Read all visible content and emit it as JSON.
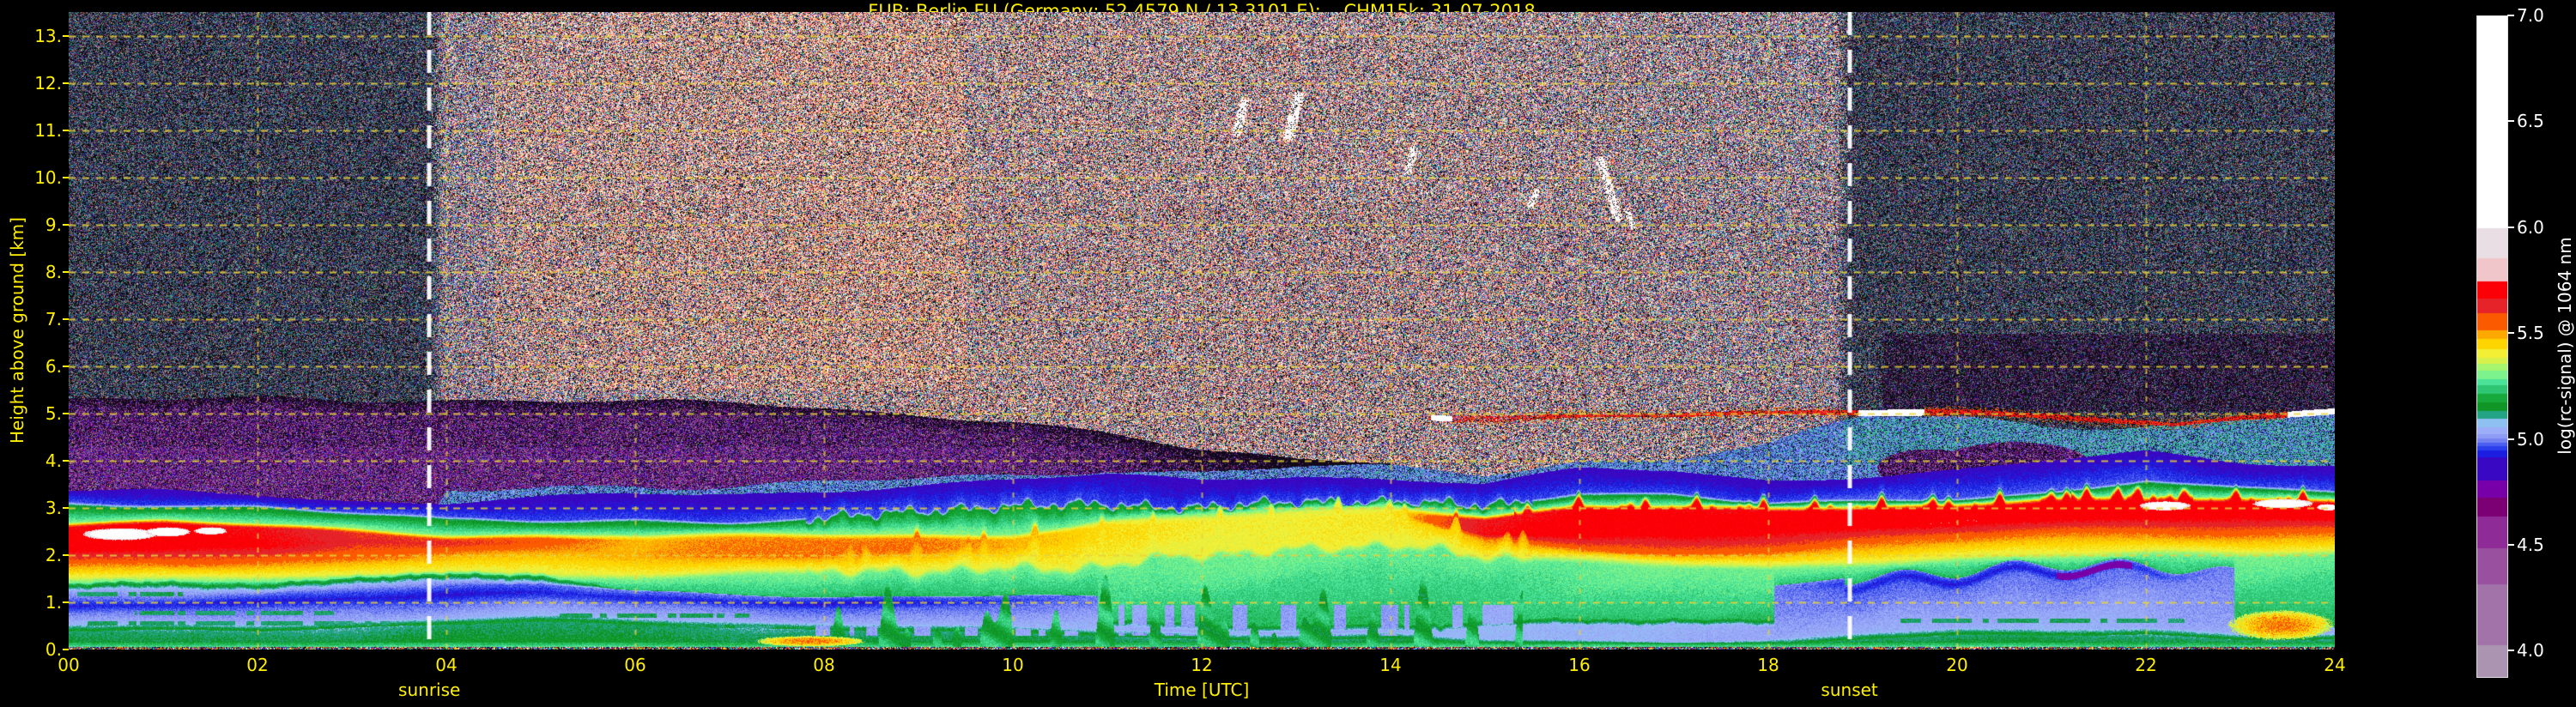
{
  "title": "FUB: Berlin FU (Germany; 52.4579 N / 13.3101 E):    CHM15k: 31-07-2018",
  "colors": {
    "background": "#000000",
    "axis_text": "#ffef00",
    "colorbar_text": "#ffffff",
    "gridline": "#e8d23c",
    "sun_line": "#ffffff"
  },
  "axes": {
    "xlabel": "Time [UTC]",
    "ylabel": "Height above ground [km]",
    "sunrise_label": "sunrise",
    "sunset_label": "sunset",
    "x_tick_labels": [
      "00",
      "02",
      "04",
      "06",
      "08",
      "10",
      "12",
      "14",
      "16",
      "18",
      "20",
      "22",
      "24"
    ],
    "y_tick_labels": [
      "0.",
      "1.",
      "2.",
      "3.",
      "4.",
      "5.",
      "6.",
      "7.",
      "8.",
      "9.",
      "10.",
      "11.",
      "12.",
      "13."
    ]
  },
  "colorbar": {
    "label": "log(rc-signal) @ 1064 nm",
    "tick_labels": [
      "7.0",
      "6.5",
      "6.0",
      "5.5",
      "5.0",
      "4.5",
      "4.0"
    ],
    "tick_values": [
      7.0,
      6.5,
      6.0,
      5.5,
      5.0,
      4.5,
      4.0
    ]
  },
  "chart_data": {
    "type": "heatmap",
    "title": "FUB: Berlin FU (Germany; 52.4579 N / 13.3101 E):    CHM15k: 31-07-2018",
    "x_range_utc_hours": [
      0,
      24
    ],
    "y_range_km": [
      0,
      13.5
    ],
    "value_label": "log(rc-signal) @ 1064 nm",
    "value_range": [
      4.0,
      7.0
    ],
    "bar_value_range": [
      3.88,
      7.0
    ],
    "sunrise_utc": 3.82,
    "sunset_utc": 18.86,
    "colormap_floor": 3.85,
    "colormap": [
      [
        4.03,
        "#ab93b2"
      ],
      [
        4.32,
        "#a273a8"
      ],
      [
        4.49,
        "#99519f"
      ],
      [
        4.64,
        "#8e2b96"
      ],
      [
        4.73,
        "#7c0074"
      ],
      [
        4.81,
        "#7800a8"
      ],
      [
        4.92,
        "#3908c2"
      ],
      [
        4.95,
        "#1b1ee0"
      ],
      [
        4.97,
        "#2b3eec"
      ],
      [
        4.99,
        "#4b5ef0"
      ],
      [
        5.01,
        "#7583f2"
      ],
      [
        5.03,
        "#8f9cf5"
      ],
      [
        5.06,
        "#9caef8"
      ],
      [
        5.1,
        "#8fc0f2"
      ],
      [
        5.14,
        "#23a484"
      ],
      [
        5.18,
        "#0f9627"
      ],
      [
        5.22,
        "#17a93b"
      ],
      [
        5.26,
        "#2ec573"
      ],
      [
        5.29,
        "#4ae397"
      ],
      [
        5.33,
        "#7bf28b"
      ],
      [
        5.36,
        "#a5f56e"
      ],
      [
        5.39,
        "#d8f04a"
      ],
      [
        5.43,
        "#f2ef35"
      ],
      [
        5.48,
        "#fed500"
      ],
      [
        5.52,
        "#fda900"
      ],
      [
        5.6,
        "#fb5a00"
      ],
      [
        5.67,
        "#e62328"
      ],
      [
        5.75,
        "#fb0007"
      ],
      [
        5.86,
        "#f0c6ca"
      ],
      [
        6.0,
        "#e8dee4"
      ],
      [
        7.01,
        "#ffffff"
      ]
    ],
    "layers": {
      "hours_step": 1,
      "lavender_top": [
        1.25,
        1.3,
        1.3,
        1.35,
        1.45,
        1.35,
        1.1,
        1.0,
        0.95,
        0.8,
        0.6,
        0.5,
        0.45,
        0.4,
        0.35,
        0.45,
        0.5,
        0.55,
        0.5,
        0.9,
        1.15,
        1.25,
        1.3,
        0.5,
        0.4
      ],
      "green_low_top": [
        0.45,
        0.5,
        0.5,
        0.55,
        0.6,
        0.65,
        0.6,
        0.55,
        0.5,
        0.45,
        0.4,
        0.35,
        0.3,
        0.3,
        0.3,
        0.15,
        0.12,
        0.12,
        0.15,
        0.3,
        0.35,
        0.35,
        0.4,
        0.3,
        0.3
      ],
      "blue_band_bottom": [
        0.75,
        0.8,
        0.85,
        0.95,
        1.0,
        1.05,
        0.9,
        0.85,
        0.85,
        0.9,
        0.95,
        1.0,
        1.0,
        1.0,
        1.0,
        1.1,
        1.2,
        1.2,
        1.25,
        1.3,
        1.4,
        1.5,
        1.55,
        1.5,
        1.5
      ],
      "blue_band_top": [
        1.05,
        1.1,
        1.15,
        1.3,
        1.35,
        1.4,
        1.2,
        1.15,
        1.1,
        1.15,
        1.15,
        1.1,
        1.1,
        1.1,
        1.1,
        1.2,
        1.3,
        1.3,
        1.35,
        1.55,
        1.65,
        1.75,
        1.75,
        1.6,
        1.6
      ],
      "blue_band_alpha": [
        1,
        1,
        1,
        1,
        1,
        1,
        1,
        1,
        1,
        0.9,
        0.5,
        0,
        0,
        0,
        0,
        0,
        0,
        0,
        0,
        0.8,
        1,
        1,
        0.7,
        0,
        0
      ],
      "yellow_bottom": [
        1.5,
        1.5,
        1.5,
        1.5,
        1.55,
        1.55,
        1.55,
        1.6,
        1.6,
        1.65,
        1.7,
        1.8,
        2.0,
        2.1,
        2.2,
        2.0,
        1.9,
        1.8,
        1.7,
        1.8,
        1.9,
        2.0,
        2.05,
        2.0,
        2.05
      ],
      "orange_bottom": [
        1.8,
        1.85,
        1.9,
        1.95,
        2.0,
        2.05,
        2.0,
        2.0,
        2.0,
        2.05,
        2.15,
        2.4,
        2.6,
        2.7,
        2.8,
        2.3,
        2.15,
        2.05,
        2.1,
        2.25,
        2.35,
        2.45,
        2.5,
        2.45,
        2.5
      ],
      "orange_alpha": [
        1,
        1,
        1,
        1,
        0.85,
        0.8,
        0.75,
        0.85,
        0.9,
        0.9,
        0.8,
        0.5,
        0.3,
        0.3,
        0.3,
        0.9,
        1,
        1,
        1,
        1,
        1,
        1,
        1,
        1,
        1
      ],
      "red_bottom": [
        2.1,
        2.15,
        2.2,
        2.3,
        2.25,
        2.3,
        2.3,
        2.3,
        2.3,
        2.3,
        2.3,
        2.6,
        2.7,
        2.8,
        2.9,
        2.45,
        2.4,
        2.45,
        2.55,
        2.65,
        2.7,
        2.75,
        2.8,
        2.85,
        2.85
      ],
      "red_top": [
        2.65,
        2.7,
        2.6,
        2.5,
        2.4,
        2.42,
        2.4,
        2.4,
        2.4,
        2.4,
        2.4,
        2.7,
        2.8,
        2.9,
        3.0,
        2.8,
        3.05,
        3.0,
        2.95,
        3.0,
        3.05,
        3.2,
        3.15,
        3.15,
        3.1
      ],
      "red_alpha": [
        1,
        1,
        0.9,
        0.45,
        0.55,
        0.35,
        0,
        0,
        0,
        0,
        0,
        0,
        0,
        0,
        0,
        0.85,
        1,
        1,
        0.95,
        1,
        1,
        1,
        1,
        1,
        1
      ],
      "bl_green_top": [
        3.05,
        3.05,
        3.0,
        2.85,
        2.7,
        2.7,
        2.75,
        2.7,
        2.75,
        2.9,
        3.0,
        3.1,
        3.0,
        3.1,
        3.05,
        3.0,
        3.3,
        3.3,
        3.1,
        3.1,
        3.15,
        3.3,
        3.6,
        3.4,
        3.3
      ],
      "blue_cap_top": [
        3.35,
        3.35,
        3.3,
        3.15,
        3.1,
        3.2,
        3.3,
        3.3,
        3.4,
        3.5,
        3.6,
        3.7,
        3.6,
        3.7,
        3.6,
        3.5,
        3.8,
        3.8,
        3.6,
        3.7,
        3.8,
        4.0,
        4.2,
        4.0,
        3.9
      ],
      "haze_top": [
        5.35,
        5.3,
        5.3,
        5.25,
        5.3,
        5.3,
        5.25,
        5.2,
        5.1,
        5.0,
        4.9,
        4.6,
        4.2,
        4.0,
        4.0,
        4.0,
        4.0,
        4.0,
        4.0,
        4.0,
        4.0,
        4.0,
        4.0,
        4.0,
        4.0
      ],
      "haze_alpha": [
        1,
        1,
        1,
        1,
        1,
        1,
        1,
        1,
        1,
        1,
        0.95,
        0.8,
        0.45,
        0.1,
        0,
        0,
        0,
        0,
        0,
        0,
        0,
        0,
        0,
        0,
        0
      ],
      "blue_speckle_top": [
        0,
        0,
        0,
        0,
        3.3,
        3.45,
        3.5,
        3.45,
        3.5,
        3.6,
        3.7,
        3.9,
        3.8,
        3.9,
        3.8,
        3.7,
        4.0,
        4.1,
        4.3,
        4.9,
        4.9,
        4.8,
        4.8,
        4.9,
        5.0
      ]
    },
    "features": {
      "elevated_layer": {
        "t": [
          14.4,
          15,
          16,
          17,
          18,
          19,
          20,
          21,
          21.8,
          22.3,
          23,
          23.6,
          24
        ],
        "h": [
          4.95,
          4.93,
          4.95,
          4.97,
          5.0,
          5.05,
          5.05,
          4.95,
          4.8,
          4.72,
          4.9,
          5.0,
          5.05
        ],
        "white_segments": [
          [
            14.42,
            14.65
          ],
          [
            18.95,
            19.65
          ],
          [
            23.5,
            24.0
          ]
        ]
      },
      "clouds": [
        {
          "t0": 12.37,
          "h0": 10.95,
          "t1": 12.45,
          "h1": 11.6,
          "w": 0.1
        },
        {
          "t0": 12.92,
          "h0": 10.9,
          "t1": 13.02,
          "h1": 11.7,
          "w": 0.12
        },
        {
          "t0": 14.18,
          "h0": 10.15,
          "t1": 14.24,
          "h1": 10.6,
          "w": 0.08
        },
        {
          "t0": 15.48,
          "h0": 9.4,
          "t1": 15.54,
          "h1": 9.7,
          "w": 0.07
        },
        {
          "t0": 16.22,
          "h0": 10.35,
          "t1": 16.4,
          "h1": 9.15,
          "w": 0.1
        },
        {
          "t0": 16.5,
          "h0": 9.3,
          "t1": 16.57,
          "h1": 8.95,
          "w": 0.06
        }
      ],
      "white_patches": [
        {
          "t": 0.55,
          "h": 2.45,
          "rt": 0.42,
          "rh": 0.13
        },
        {
          "t": 1.05,
          "h": 2.5,
          "rt": 0.25,
          "rh": 0.1
        },
        {
          "t": 1.5,
          "h": 2.52,
          "rt": 0.18,
          "rh": 0.08
        },
        {
          "t": 22.2,
          "h": 3.05,
          "rt": 0.28,
          "rh": 0.1
        },
        {
          "t": 23.45,
          "h": 3.1,
          "rt": 0.33,
          "rh": 0.1
        },
        {
          "t": 23.92,
          "h": 3.02,
          "rt": 0.12,
          "rh": 0.07
        }
      ],
      "surface_patches": [
        {
          "t0": 7.25,
          "t1": 8.45,
          "h0": 0.07,
          "h1": 0.3,
          "v": 5.5
        },
        {
          "t0": 22.85,
          "t1": 24.0,
          "h0": 0.2,
          "h1": 0.85,
          "v": 5.5
        }
      ],
      "purple_blobs": [
        {
          "t": 19.7,
          "h": 3.85,
          "rt": 0.55,
          "rh": 0.4
        },
        {
          "t": 20.6,
          "h": 3.95,
          "rt": 0.8,
          "rh": 0.45
        }
      ],
      "teal_wisps": [
        {
          "t0": 0.2,
          "t1": 3.4,
          "h": 0.56
        },
        {
          "t0": 0.7,
          "t1": 2.8,
          "h": 0.78
        },
        {
          "t0": 4.2,
          "t1": 7.6,
          "h": 0.5
        },
        {
          "t0": 5.2,
          "t1": 7.2,
          "h": 0.72
        },
        {
          "t0": 19.4,
          "t1": 22.4,
          "h": 0.62
        },
        {
          "t0": 0.0,
          "t1": 1.2,
          "h": 1.18
        }
      ]
    }
  }
}
